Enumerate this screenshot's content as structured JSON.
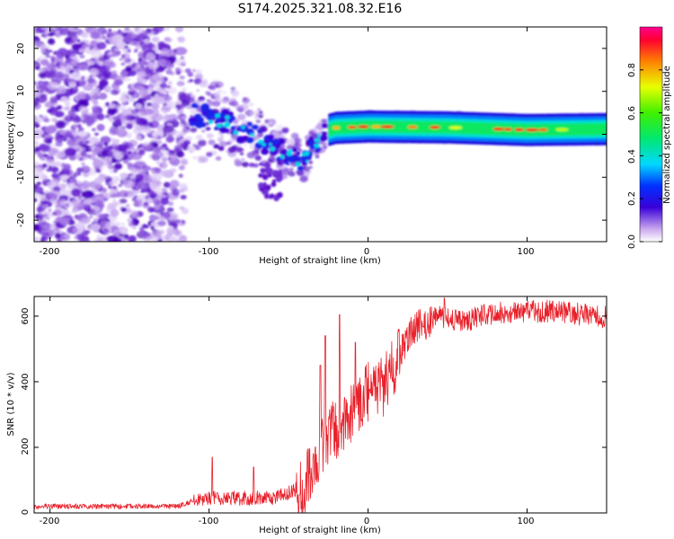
{
  "figure_title": "S174.2025.321.08.32.E16",
  "colors": {
    "snr_line": "#e8202a",
    "frame": "#000000",
    "background": "#ffffff"
  },
  "chart_data": [
    {
      "type": "heatmap",
      "name": "spectrogram",
      "xlabel": "Height of straight line (km)",
      "ylabel": "Frequency (Hz)",
      "xlim": [
        -210,
        150
      ],
      "ylim": [
        -25,
        25
      ],
      "xticks": [
        -200,
        -100,
        0,
        100
      ],
      "yticks": [
        -20,
        -10,
        0,
        10,
        20
      ],
      "xtick_labels": [
        "-200",
        "-100",
        "0",
        "100"
      ],
      "ytick_labels": [
        "-20",
        "-10",
        "0",
        "10",
        "20"
      ],
      "ridge": [
        {
          "x": -110,
          "y": 5
        },
        {
          "x": -100,
          "y": 4
        },
        {
          "x": -90,
          "y": 3
        },
        {
          "x": -80,
          "y": 1
        },
        {
          "x": -70,
          "y": -1
        },
        {
          "x": -60,
          "y": -3
        },
        {
          "x": -50,
          "y": -5
        },
        {
          "x": -40,
          "y": -6
        },
        {
          "x": -35,
          "y": -3
        },
        {
          "x": -30,
          "y": -1
        },
        {
          "x": -25,
          "y": 1
        },
        {
          "x": -20,
          "y": 1.5
        },
        {
          "x": 0,
          "y": 1.8
        },
        {
          "x": 50,
          "y": 1.6
        },
        {
          "x": 100,
          "y": 1.0
        },
        {
          "x": 150,
          "y": 1.2
        }
      ],
      "colorbar": {
        "label": "Normalized spectral amplitude",
        "range": [
          0,
          1
        ],
        "ticks": [
          0.0,
          0.2,
          0.4,
          0.6,
          0.8
        ],
        "tick_labels": [
          "0.0",
          "0.2",
          "0.4",
          "0.6",
          "0.8"
        ]
      }
    },
    {
      "type": "line",
      "name": "snr",
      "xlabel": "Height of straight line (km)",
      "ylabel": "SNR (10 * v/v)",
      "xlim": [
        -210,
        150
      ],
      "ylim": [
        0,
        660
      ],
      "xticks": [
        -200,
        -100,
        0,
        100
      ],
      "yticks": [
        0,
        200,
        400,
        600
      ],
      "xtick_labels": [
        "-200",
        "-100",
        "0",
        "100"
      ],
      "ytick_labels": [
        "0",
        "200",
        "400",
        "600"
      ],
      "envelope": [
        {
          "x": -210,
          "y": 20
        },
        {
          "x": -120,
          "y": 20
        },
        {
          "x": -105,
          "y": 45
        },
        {
          "x": -60,
          "y": 45
        },
        {
          "x": -40,
          "y": 80
        },
        {
          "x": -30,
          "y": 200
        },
        {
          "x": -20,
          "y": 260
        },
        {
          "x": -10,
          "y": 300
        },
        {
          "x": 0,
          "y": 370
        },
        {
          "x": 10,
          "y": 390
        },
        {
          "x": 20,
          "y": 480
        },
        {
          "x": 30,
          "y": 570
        },
        {
          "x": 45,
          "y": 600
        },
        {
          "x": 60,
          "y": 585
        },
        {
          "x": 80,
          "y": 610
        },
        {
          "x": 100,
          "y": 615
        },
        {
          "x": 120,
          "y": 615
        },
        {
          "x": 150,
          "y": 595
        }
      ],
      "spikes": [
        {
          "x": -98,
          "y": 170
        },
        {
          "x": -72,
          "y": 140
        },
        {
          "x": -30,
          "y": 450
        },
        {
          "x": -27,
          "y": 540
        },
        {
          "x": -18,
          "y": 605
        },
        {
          "x": -8,
          "y": 520
        },
        {
          "x": 10,
          "y": 420
        },
        {
          "x": 48,
          "y": 655
        }
      ],
      "color": "#e8202a"
    }
  ]
}
